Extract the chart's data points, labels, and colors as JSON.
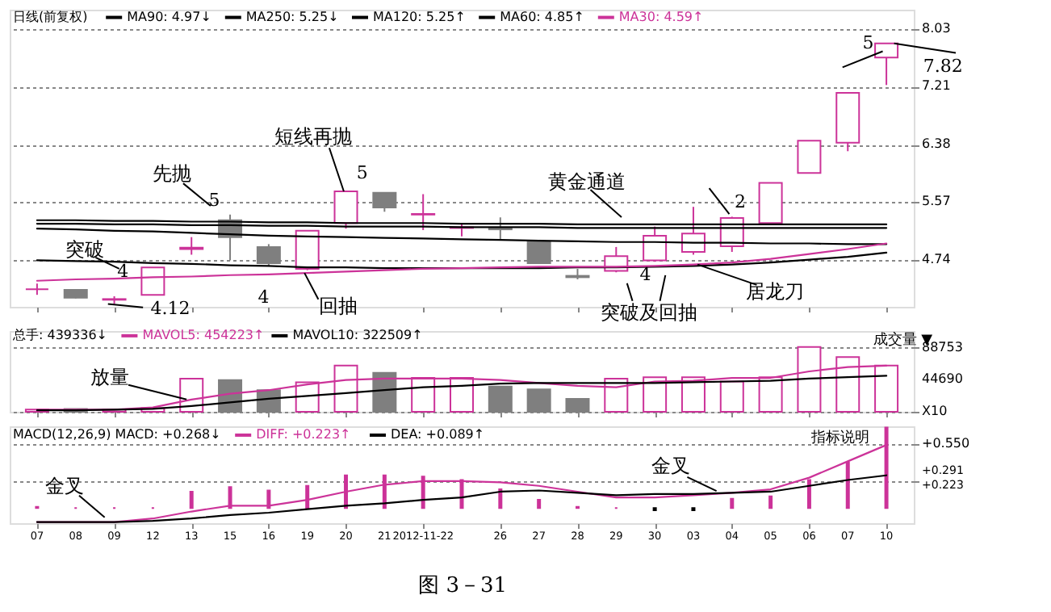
{
  "chart_data": [
    {
      "type": "candlestick",
      "title": "日线(前复权)",
      "categories": [
        "07",
        "08",
        "09",
        "12",
        "13",
        "15",
        "16",
        "19",
        "20",
        "21",
        "2012-11-22",
        null,
        "26",
        "27",
        "28",
        "29",
        "30",
        "03",
        "04",
        "05",
        "06",
        "07",
        "10"
      ],
      "ohlc": [
        [
          4.33,
          4.41,
          4.25,
          4.33
        ],
        [
          4.32,
          4.33,
          4.2,
          4.21
        ],
        [
          4.18,
          4.23,
          4.12,
          4.19
        ],
        [
          4.25,
          4.64,
          4.25,
          4.64
        ],
        [
          4.9,
          5.07,
          4.82,
          4.92
        ],
        [
          5.31,
          5.39,
          4.74,
          5.07
        ],
        [
          4.93,
          4.97,
          4.66,
          4.7
        ],
        [
          4.62,
          5.16,
          4.6,
          5.16
        ],
        [
          5.27,
          5.72,
          5.19,
          5.72
        ],
        [
          5.7,
          5.7,
          5.43,
          5.49
        ],
        [
          5.39,
          5.68,
          5.17,
          5.4
        ],
        [
          5.2,
          5.27,
          5.08,
          5.21
        ],
        [
          5.2,
          5.35,
          5.03,
          5.18
        ],
        [
          5.0,
          5.0,
          4.7,
          4.7
        ],
        [
          4.52,
          4.62,
          4.47,
          4.5
        ],
        [
          4.59,
          4.93,
          4.57,
          4.8
        ],
        [
          4.74,
          5.22,
          4.72,
          5.09
        ],
        [
          4.86,
          5.5,
          4.82,
          5.12
        ],
        [
          4.94,
          5.36,
          4.86,
          5.34
        ],
        [
          5.27,
          5.84,
          5.27,
          5.84
        ],
        [
          5.98,
          6.44,
          5.98,
          6.44
        ],
        [
          6.41,
          7.12,
          6.29,
          7.12
        ],
        [
          7.62,
          7.82,
          7.23,
          7.82
        ]
      ],
      "colors": [
        "#cc3399",
        "#7f7f7f",
        "#cc3399",
        "#cc3399",
        "#cc3399",
        "#7f7f7f",
        "#7f7f7f",
        "#cc3399",
        "#cc3399",
        "#7f7f7f",
        "#cc3399",
        "#cc3399",
        "#7f7f7f",
        "#7f7f7f",
        "#7f7f7f",
        "#cc3399",
        "#cc3399",
        "#cc3399",
        "#cc3399",
        "#cc3399",
        "#cc3399",
        "#cc3399",
        "#cc3399"
      ],
      "series": [
        {
          "name": "MA90: 4.97↓",
          "type": "line",
          "color": "#000000",
          "values": [
            5.19,
            5.18,
            5.16,
            5.15,
            5.13,
            5.11,
            5.09,
            5.08,
            5.07,
            5.06,
            5.05,
            5.04,
            5.03,
            5.02,
            5.01,
            5.0,
            5.0,
            4.99,
            4.99,
            4.98,
            4.98,
            4.97,
            4.97
          ]
        },
        {
          "name": "MA250: 5.25↓",
          "type": "line",
          "color": "#000000",
          "values": [
            5.31,
            5.31,
            5.3,
            5.3,
            5.29,
            5.29,
            5.28,
            5.28,
            5.27,
            5.27,
            5.27,
            5.26,
            5.26,
            5.26,
            5.25,
            5.25,
            5.25,
            5.25,
            5.25,
            5.25,
            5.25,
            5.25,
            5.25
          ]
        },
        {
          "name": "MA120: 5.25↑",
          "type": "line",
          "color": "#000000",
          "values": [
            5.26,
            5.26,
            5.25,
            5.25,
            5.24,
            5.24,
            5.23,
            5.23,
            5.22,
            5.22,
            5.22,
            5.21,
            5.21,
            5.21,
            5.2,
            5.2,
            5.2,
            5.2,
            5.2,
            5.2,
            5.2,
            5.2,
            5.2
          ]
        },
        {
          "name": "MA60: 4.85↑",
          "type": "line",
          "color": "#000000",
          "values": [
            4.74,
            4.73,
            4.72,
            4.7,
            4.69,
            4.67,
            4.66,
            4.64,
            4.64,
            4.63,
            4.63,
            4.63,
            4.63,
            4.63,
            4.64,
            4.64,
            4.65,
            4.66,
            4.68,
            4.71,
            4.75,
            4.79,
            4.85
          ]
        },
        {
          "name": "MA30: 4.59↑",
          "type": "line",
          "color": "#cc3399",
          "values": [
            4.45,
            4.47,
            4.48,
            4.5,
            4.51,
            4.53,
            4.54,
            4.56,
            4.58,
            4.6,
            4.62,
            4.63,
            4.64,
            4.65,
            4.65,
            4.65,
            4.66,
            4.68,
            4.71,
            4.76,
            4.83,
            4.9,
            4.98
          ]
        }
      ],
      "ylim": [
        4.08,
        8.3
      ],
      "yticks": [
        4.74,
        5.57,
        6.38,
        7.21,
        8.03
      ],
      "grid": "y",
      "tick_labels": "y",
      "legend": "top left",
      "annotations": [
        "突破",
        "4",
        {
          "text": "4.12",
          "x": "09",
          "y": 4.12
        },
        "先抛",
        "5",
        {
          "text": "短线再抛",
          "x": "20",
          "y": 5.72
        },
        "5",
        "黄金通道",
        "2",
        {
          "text": "回抽",
          "x": "19",
          "y": 4.56
        },
        "4",
        "突破及回抽",
        "4",
        {
          "text": "居龙刀",
          "x": "03",
          "y": 4.68
        },
        "5",
        {
          "text": "7.82",
          "x": "10",
          "y": 7.82
        }
      ]
    },
    {
      "type": "bar",
      "title": "总手: 439336↓",
      "categories": [
        "07",
        "08",
        "09",
        "12",
        "13",
        "15",
        "16",
        "19",
        "20",
        "21",
        "2012-11-22",
        null,
        "26",
        "27",
        "28",
        "29",
        "30",
        "03",
        "04",
        "05",
        "06",
        "07",
        "10"
      ],
      "values": [
        3000,
        4000,
        3000,
        5000,
        46000,
        44000,
        30000,
        41000,
        64000,
        54000,
        47000,
        47000,
        35000,
        31000,
        18000,
        46000,
        48000,
        48000,
        42000,
        48000,
        90000,
        76000,
        64000
      ],
      "colors": [
        "#cc3399",
        "#7f7f7f",
        "#cc3399",
        "#cc3399",
        "#cc3399",
        "#7f7f7f",
        "#7f7f7f",
        "#cc3399",
        "#cc3399",
        "#7f7f7f",
        "#cc3399",
        "#cc3399",
        "#7f7f7f",
        "#7f7f7f",
        "#7f7f7f",
        "#cc3399",
        "#cc3399",
        "#cc3399",
        "#cc3399",
        "#cc3399",
        "#cc3399",
        "#cc3399",
        "#cc3399"
      ],
      "series": [
        {
          "name": "MAVOL5: 454223↑",
          "type": "line",
          "color": "#cc3399",
          "values": [
            3000,
            3000,
            3000,
            6000,
            17000,
            25000,
            30000,
            38000,
            44000,
            46000,
            46000,
            46000,
            44000,
            40000,
            36000,
            34000,
            42000,
            43000,
            47000,
            47000,
            56000,
            62000,
            64000
          ]
        },
        {
          "name": "MAVOL10: 322509↑",
          "type": "line",
          "color": "#000000",
          "values": [
            2000,
            2000,
            3000,
            4000,
            8000,
            13000,
            18000,
            22000,
            26000,
            30000,
            34000,
            36000,
            39000,
            40000,
            40000,
            40000,
            40000,
            41000,
            42000,
            43000,
            46000,
            48000,
            50000
          ]
        }
      ],
      "ylim": [
        0,
        112000
      ],
      "yticks": [
        {
          "value": 0,
          "label": "X10"
        },
        44690,
        88753
      ],
      "grid": "y",
      "tick_labels": "y",
      "legend": "top left",
      "annotations": [
        {
          "text": "放量",
          "x": "13",
          "y": 17000
        },
        "成交量 ▼"
      ]
    },
    {
      "type": "bar",
      "title": "MACD(12,26,9) MACD: +0.268↓",
      "categories": [
        "07",
        "08",
        "09",
        "12",
        "13",
        "15",
        "16",
        "19",
        "20",
        "21",
        "2012-11-22",
        null,
        "26",
        "27",
        "28",
        "29",
        "30",
        "03",
        "04",
        "05",
        "06",
        "07",
        "10"
      ],
      "values": [
        0.01,
        0.0,
        0.0,
        0.0,
        0.14,
        0.18,
        0.15,
        0.19,
        0.28,
        0.28,
        0.27,
        0.24,
        0.16,
        0.07,
        0.01,
        0.0,
        -0.02,
        -0.02,
        0.08,
        0.1,
        0.24,
        0.39,
        0.69
      ],
      "colors": [
        "#cc3399",
        "#cc3399",
        "#cc3399",
        "#cc3399",
        "#cc3399",
        "#cc3399",
        "#cc3399",
        "#cc3399",
        "#cc3399",
        "#cc3399",
        "#cc3399",
        "#cc3399",
        "#cc3399",
        "#cc3399",
        "#cc3399",
        "#cc3399",
        "#000000",
        "#000000",
        "#cc3399",
        "#cc3399",
        "#cc3399",
        "#cc3399",
        "#cc3399"
      ],
      "series": [
        {
          "name": "DIFF: +0.223↑",
          "type": "line",
          "color": "#cc3399",
          "values": [
            -0.12,
            -0.12,
            -0.12,
            -0.09,
            -0.03,
            0.02,
            0.02,
            0.07,
            0.14,
            0.2,
            0.23,
            0.23,
            0.22,
            0.19,
            0.14,
            0.09,
            0.09,
            0.11,
            0.13,
            0.16,
            0.26,
            0.4,
            0.54
          ]
        },
        {
          "name": "DEA: +0.089↑",
          "type": "line",
          "color": "#000000",
          "values": [
            -0.12,
            -0.12,
            -0.12,
            -0.11,
            -0.09,
            -0.06,
            -0.04,
            -0.01,
            0.02,
            0.04,
            0.07,
            0.09,
            0.14,
            0.15,
            0.13,
            0.11,
            0.12,
            0.12,
            0.13,
            0.14,
            0.19,
            0.24,
            0.28
          ]
        }
      ],
      "ylim": [
        -0.13,
        0.7
      ],
      "yticks": [
        {
          "value": 0.223,
          "label": "+0.223"
        },
        {
          "value": 0.291,
          "label": "+0.291"
        },
        {
          "value": 0.55,
          "label": "+0.550"
        }
      ],
      "grid": "y",
      "legend": "top left",
      "annotations": [
        "金叉",
        "金叉",
        "指标说明",
        "图 3－31"
      ]
    }
  ]
}
